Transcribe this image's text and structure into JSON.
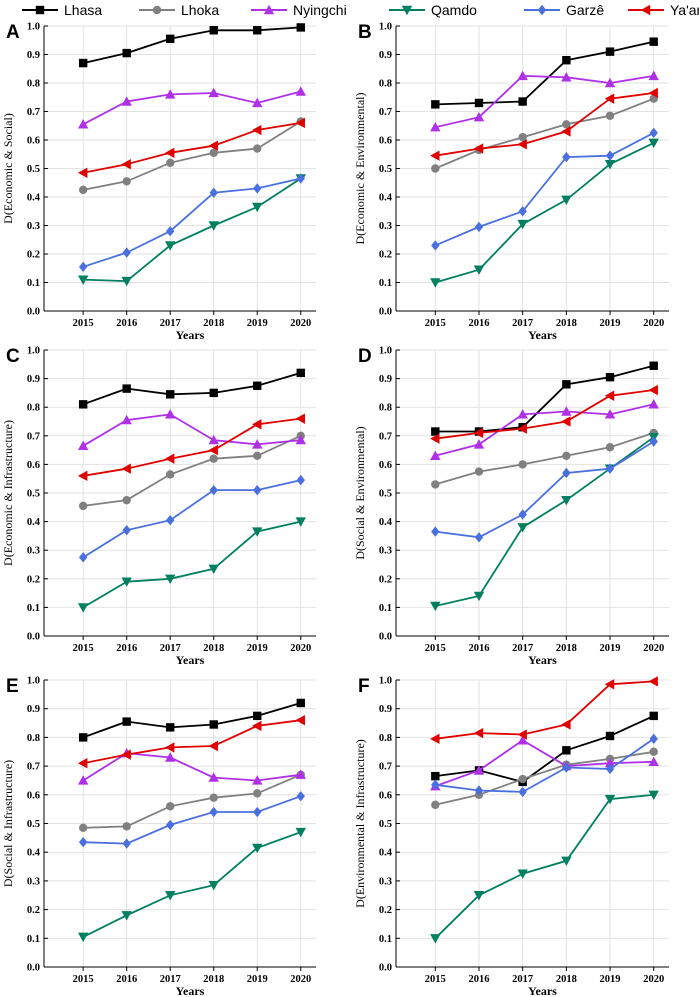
{
  "legend": [
    {
      "name": "Lhasa",
      "color": "#000000",
      "marker": "square"
    },
    {
      "name": "Lhoka",
      "color": "#808080",
      "marker": "circle"
    },
    {
      "name": "Nyingchi",
      "color": "#b030e8",
      "marker": "triangle-up"
    },
    {
      "name": "Qamdo",
      "color": "#008060",
      "marker": "triangle-down"
    },
    {
      "name": "Garzê",
      "color": "#4a70e0",
      "marker": "diamond"
    },
    {
      "name": "Ya'an",
      "color": "#e00000",
      "marker": "triangle-left"
    }
  ],
  "chart_data": [
    {
      "type": "line",
      "panel": "A",
      "title": "",
      "xlabel": "Years",
      "ylabel": "D(Economic & Social)",
      "categories": [
        "2015",
        "2016",
        "2017",
        "2018",
        "2019",
        "2020"
      ],
      "ylim": [
        0.0,
        1.0
      ],
      "yticks": [
        "0.0",
        "0.1",
        "0.2",
        "0.3",
        "0.4",
        "0.5",
        "0.6",
        "0.7",
        "0.8",
        "0.9",
        "1.0"
      ],
      "series": [
        {
          "name": "Lhasa",
          "values": [
            0.87,
            0.905,
            0.955,
            0.985,
            0.985,
            0.995
          ]
        },
        {
          "name": "Lhoka",
          "values": [
            0.425,
            0.455,
            0.52,
            0.555,
            0.57,
            0.665
          ]
        },
        {
          "name": "Nyingchi",
          "values": [
            0.655,
            0.735,
            0.76,
            0.765,
            0.73,
            0.77
          ]
        },
        {
          "name": "Qamdo",
          "values": [
            0.11,
            0.105,
            0.23,
            0.3,
            0.365,
            0.465
          ]
        },
        {
          "name": "Garzê",
          "values": [
            0.155,
            0.205,
            0.28,
            0.415,
            0.43,
            0.465
          ]
        },
        {
          "name": "Ya'an",
          "values": [
            0.485,
            0.515,
            0.555,
            0.58,
            0.635,
            0.66
          ]
        }
      ]
    },
    {
      "type": "line",
      "panel": "B",
      "title": "",
      "xlabel": "Years",
      "ylabel": "D(Economic & Environmental)",
      "categories": [
        "2015",
        "2016",
        "2017",
        "2018",
        "2019",
        "2020"
      ],
      "ylim": [
        0.0,
        1.0
      ],
      "yticks": [
        "0.0",
        "0.1",
        "0.2",
        "0.3",
        "0.4",
        "0.5",
        "0.6",
        "0.7",
        "0.8",
        "0.9",
        "1.0"
      ],
      "series": [
        {
          "name": "Lhasa",
          "values": [
            0.725,
            0.73,
            0.735,
            0.88,
            0.91,
            0.945
          ]
        },
        {
          "name": "Lhoka",
          "values": [
            0.5,
            0.565,
            0.61,
            0.655,
            0.685,
            0.745
          ]
        },
        {
          "name": "Nyingchi",
          "values": [
            0.645,
            0.68,
            0.825,
            0.82,
            0.8,
            0.825
          ]
        },
        {
          "name": "Qamdo",
          "values": [
            0.1,
            0.145,
            0.305,
            0.39,
            0.515,
            0.59
          ]
        },
        {
          "name": "Garzê",
          "values": [
            0.23,
            0.295,
            0.35,
            0.54,
            0.545,
            0.625
          ]
        },
        {
          "name": "Ya'an",
          "values": [
            0.545,
            0.57,
            0.585,
            0.63,
            0.745,
            0.765
          ]
        }
      ]
    },
    {
      "type": "line",
      "panel": "C",
      "title": "",
      "xlabel": "Years",
      "ylabel": "D(Economic & Infrastructure)",
      "categories": [
        "2015",
        "2016",
        "2017",
        "2018",
        "2019",
        "2020"
      ],
      "ylim": [
        0.0,
        1.0
      ],
      "yticks": [
        "0.0",
        "0.1",
        "0.2",
        "0.3",
        "0.4",
        "0.5",
        "0.6",
        "0.7",
        "0.8",
        "0.9",
        "1.0"
      ],
      "series": [
        {
          "name": "Lhasa",
          "values": [
            0.81,
            0.865,
            0.845,
            0.85,
            0.875,
            0.92
          ]
        },
        {
          "name": "Lhoka",
          "values": [
            0.455,
            0.475,
            0.565,
            0.62,
            0.63,
            0.7
          ]
        },
        {
          "name": "Nyingchi",
          "values": [
            0.665,
            0.755,
            0.775,
            0.685,
            0.67,
            0.685
          ]
        },
        {
          "name": "Qamdo",
          "values": [
            0.1,
            0.19,
            0.2,
            0.235,
            0.365,
            0.4
          ]
        },
        {
          "name": "Garzê",
          "values": [
            0.275,
            0.37,
            0.405,
            0.51,
            0.51,
            0.545
          ]
        },
        {
          "name": "Ya'an",
          "values": [
            0.56,
            0.585,
            0.62,
            0.65,
            0.74,
            0.76
          ]
        }
      ]
    },
    {
      "type": "line",
      "panel": "D",
      "title": "",
      "xlabel": "Years",
      "ylabel": "D(Social & Environmental)",
      "categories": [
        "2015",
        "2016",
        "2017",
        "2018",
        "2019",
        "2020"
      ],
      "ylim": [
        0.0,
        1.0
      ],
      "yticks": [
        "0.0",
        "0.1",
        "0.2",
        "0.3",
        "0.4",
        "0.5",
        "0.6",
        "0.7",
        "0.8",
        "0.9",
        "1.0"
      ],
      "series": [
        {
          "name": "Lhasa",
          "values": [
            0.715,
            0.715,
            0.73,
            0.88,
            0.905,
            0.945
          ]
        },
        {
          "name": "Lhoka",
          "values": [
            0.53,
            0.575,
            0.6,
            0.63,
            0.66,
            0.71
          ]
        },
        {
          "name": "Nyingchi",
          "values": [
            0.63,
            0.67,
            0.775,
            0.785,
            0.775,
            0.81
          ]
        },
        {
          "name": "Qamdo",
          "values": [
            0.105,
            0.14,
            0.38,
            0.475,
            0.585,
            0.695
          ]
        },
        {
          "name": "Garzê",
          "values": [
            0.365,
            0.345,
            0.425,
            0.57,
            0.585,
            0.68
          ]
        },
        {
          "name": "Ya'an",
          "values": [
            0.69,
            0.71,
            0.725,
            0.75,
            0.84,
            0.86
          ]
        }
      ]
    },
    {
      "type": "line",
      "panel": "E",
      "title": "",
      "xlabel": "Years",
      "ylabel": "D(Social & Infrastructure)",
      "categories": [
        "2015",
        "2016",
        "2017",
        "2018",
        "2019",
        "2020"
      ],
      "ylim": [
        0.0,
        1.0
      ],
      "yticks": [
        "0.0",
        "0.1",
        "0.2",
        "0.3",
        "0.4",
        "0.5",
        "0.6",
        "0.7",
        "0.8",
        "0.9",
        "1.0"
      ],
      "series": [
        {
          "name": "Lhasa",
          "values": [
            0.8,
            0.855,
            0.835,
            0.845,
            0.875,
            0.92
          ]
        },
        {
          "name": "Lhoka",
          "values": [
            0.485,
            0.49,
            0.56,
            0.59,
            0.605,
            0.67
          ]
        },
        {
          "name": "Nyingchi",
          "values": [
            0.65,
            0.745,
            0.73,
            0.66,
            0.65,
            0.67
          ]
        },
        {
          "name": "Qamdo",
          "values": [
            0.105,
            0.18,
            0.25,
            0.285,
            0.415,
            0.47
          ]
        },
        {
          "name": "Garzê",
          "values": [
            0.435,
            0.43,
            0.495,
            0.54,
            0.54,
            0.595
          ]
        },
        {
          "name": "Ya'an",
          "values": [
            0.71,
            0.74,
            0.765,
            0.77,
            0.84,
            0.86
          ]
        }
      ]
    },
    {
      "type": "line",
      "panel": "F",
      "title": "",
      "xlabel": "Years",
      "ylabel": "D(Environmental & Infrastructure)",
      "categories": [
        "2015",
        "2016",
        "2017",
        "2018",
        "2019",
        "2020"
      ],
      "ylim": [
        0.0,
        1.0
      ],
      "yticks": [
        "0.0",
        "0.1",
        "0.2",
        "0.3",
        "0.4",
        "0.5",
        "0.6",
        "0.7",
        "0.8",
        "0.9",
        "1.0"
      ],
      "series": [
        {
          "name": "Lhasa",
          "values": [
            0.665,
            0.685,
            0.645,
            0.755,
            0.805,
            0.875
          ]
        },
        {
          "name": "Lhoka",
          "values": [
            0.565,
            0.6,
            0.655,
            0.705,
            0.725,
            0.75
          ]
        },
        {
          "name": "Nyingchi",
          "values": [
            0.63,
            0.685,
            0.79,
            0.7,
            0.71,
            0.715
          ]
        },
        {
          "name": "Qamdo",
          "values": [
            0.1,
            0.25,
            0.325,
            0.37,
            0.585,
            0.6
          ]
        },
        {
          "name": "Garzê",
          "values": [
            0.635,
            0.615,
            0.61,
            0.695,
            0.69,
            0.795
          ]
        },
        {
          "name": "Ya'an",
          "values": [
            0.795,
            0.815,
            0.81,
            0.845,
            0.985,
            0.995
          ]
        }
      ]
    }
  ]
}
